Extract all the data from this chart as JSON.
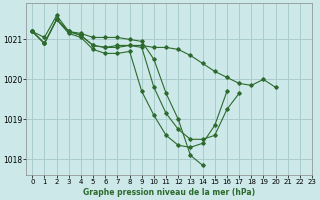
{
  "title": "Graphe pression niveau de la mer (hPa)",
  "bg_color": "#cce8e8",
  "grid_color": "#aacccc",
  "line_color": "#2d6a2d",
  "xlim": [
    -0.5,
    23
  ],
  "ylim": [
    1017.6,
    1021.9
  ],
  "yticks": [
    1018,
    1019,
    1020,
    1021
  ],
  "xticks": [
    0,
    1,
    2,
    3,
    4,
    5,
    6,
    7,
    8,
    9,
    10,
    11,
    12,
    13,
    14,
    15,
    16,
    17,
    18,
    19,
    20,
    21,
    22,
    23
  ],
  "series": [
    {
      "x": [
        0,
        1,
        2,
        3,
        4,
        5,
        6,
        7,
        8,
        9,
        10,
        11,
        12,
        13,
        14,
        15,
        16,
        17,
        18,
        19,
        20
      ],
      "y": [
        1021.2,
        1020.9,
        1021.5,
        1021.2,
        1021.1,
        1020.85,
        1020.8,
        1020.85,
        1020.85,
        1020.85,
        1020.8,
        1020.8,
        1020.75,
        1020.6,
        1020.4,
        1020.2,
        1020.05,
        1019.9,
        1019.85,
        1020.0,
        1019.8
      ]
    },
    {
      "x": [
        0,
        1,
        2,
        3,
        4,
        5,
        6,
        7,
        8,
        9,
        10,
        11,
        12,
        13,
        14,
        15,
        16,
        17
      ],
      "y": [
        1021.2,
        1020.9,
        1021.5,
        1021.2,
        1021.1,
        1020.85,
        1020.8,
        1020.8,
        1020.85,
        1020.8,
        1019.8,
        1019.15,
        1018.75,
        1018.5,
        1018.5,
        1018.6,
        1019.25,
        1019.65
      ]
    },
    {
      "x": [
        0,
        1,
        2,
        3,
        4,
        5,
        6,
        7,
        8,
        9,
        10,
        11,
        12,
        13,
        14,
        15,
        16
      ],
      "y": [
        1021.2,
        1020.9,
        1021.5,
        1021.15,
        1021.05,
        1020.75,
        1020.65,
        1020.65,
        1020.7,
        1019.7,
        1019.1,
        1018.6,
        1018.35,
        1018.3,
        1018.4,
        1018.85,
        1019.7
      ]
    },
    {
      "x": [
        0,
        1,
        2,
        3,
        4,
        5,
        6,
        7,
        8,
        9,
        10,
        11,
        12,
        13,
        14
      ],
      "y": [
        1021.2,
        1021.05,
        1021.6,
        1021.2,
        1021.15,
        1021.05,
        1021.05,
        1021.05,
        1021.0,
        1020.95,
        1020.5,
        1019.65,
        1019.0,
        1018.1,
        1017.85
      ]
    }
  ]
}
